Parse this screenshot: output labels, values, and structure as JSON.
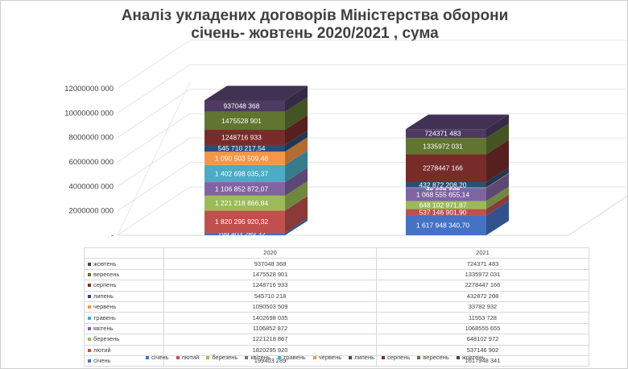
{
  "title_line1": "Аналіз укладених договорів Міністерства оборони",
  "title_line2": "січень- жовтень 2020/2021 , сума",
  "chart_data": {
    "type": "bar",
    "stacked": true,
    "three_d": true,
    "categories": [
      "2020",
      "2021"
    ],
    "ylim": [
      0,
      12000000000
    ],
    "y_ticks": [
      "12000000 000",
      "10000000 000",
      "8000000 000",
      "6000000 000",
      "4000000 000",
      "2000000 000",
      "-"
    ],
    "series": [
      {
        "name": "січень",
        "color": "#4472c4",
        "values": [
          199403289,
          1617948341
        ],
        "labels": [
          "199 403 289,32",
          "1 617 948 340,70"
        ]
      },
      {
        "name": "лютий",
        "color": "#c0504d",
        "values": [
          1820295920,
          537146902
        ],
        "labels": [
          "1 820 295 920,32",
          "537 146 901,90"
        ]
      },
      {
        "name": "березень",
        "color": "#9bbb59",
        "values": [
          1221218867,
          648102972
        ],
        "labels": [
          "1 221 218 866,84",
          "648 102 971,87"
        ]
      },
      {
        "name": "квітень",
        "color": "#8064a2",
        "values": [
          1106852872,
          1068555655
        ],
        "labels": [
          "1 106 852 872,07",
          "1 068 555 655,14"
        ]
      },
      {
        "name": "травень",
        "color": "#4bacc6",
        "values": [
          1402698035,
          11553728
        ],
        "labels": [
          "1 402 698 035,37",
          "11 553 728"
        ]
      },
      {
        "name": "червень",
        "color": "#f79646",
        "values": [
          1090503509,
          33782932
        ],
        "labels": [
          "1 090 503 509,48",
          "33 782 932"
        ]
      },
      {
        "name": "липень",
        "color": "#2c4d75",
        "values": [
          545710218,
          432872208
        ],
        "labels": [
          "545 710 217,54",
          "432 872 208,20"
        ]
      },
      {
        "name": "серпень",
        "color": "#772c2a",
        "values": [
          1248716933,
          2278447166
        ],
        "labels": [
          "1248716 933",
          "2278447 166"
        ]
      },
      {
        "name": "вересень",
        "color": "#5f7530",
        "values": [
          1475528901,
          1335972031
        ],
        "labels": [
          "1475528 901",
          "1335972 031"
        ]
      },
      {
        "name": "жовтень",
        "color": "#4d3b62",
        "values": [
          937048368,
          724371483
        ],
        "labels": [
          "937048 368",
          "724371 483"
        ]
      }
    ]
  },
  "table": {
    "headers": [
      "2020",
      "2021"
    ],
    "rows": [
      {
        "label": "жовтень",
        "v2020": "937048 368",
        "v2021": "724371 483"
      },
      {
        "label": "вересень",
        "v2020": "1475528 901",
        "v2021": "1335972 031"
      },
      {
        "label": "серпень",
        "v2020": "1248716 933",
        "v2021": "2278447 166"
      },
      {
        "label": "липень",
        "v2020": "545710 218",
        "v2021": "432872 208"
      },
      {
        "label": "червень",
        "v2020": "1090503 509",
        "v2021": "33782 932"
      },
      {
        "label": "травень",
        "v2020": "1402698 035",
        "v2021": "11553 728"
      },
      {
        "label": "квітень",
        "v2020": "1106852 872",
        "v2021": "1068555 655"
      },
      {
        "label": "березень",
        "v2020": "1221218 867",
        "v2021": "648102 972"
      },
      {
        "label": "лютий",
        "v2020": "1820295 920",
        "v2021": "537146 902"
      },
      {
        "label": "січень",
        "v2020": "199403 289",
        "v2021": "1617948 341"
      }
    ]
  },
  "legend": [
    "січень",
    "лютий",
    "березень",
    "квітень",
    "травень",
    "червень",
    "липень",
    "серпень",
    "вересень",
    "жовтень"
  ]
}
